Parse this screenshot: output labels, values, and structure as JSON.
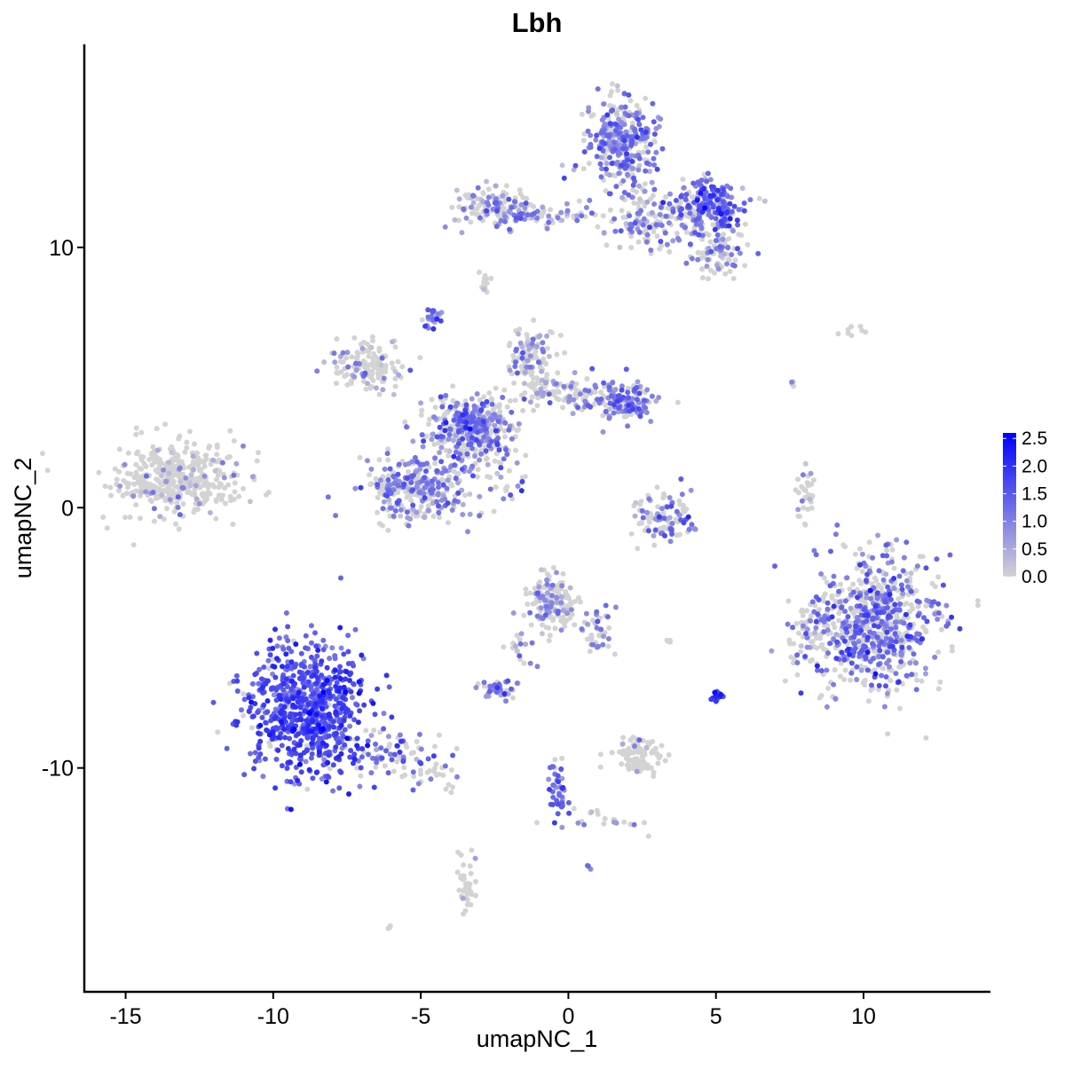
{
  "chart_data": {
    "type": "scatter",
    "title": "Lbh",
    "xlabel": "umapNC_1",
    "ylabel": "umapNC_2",
    "xlim": [
      -16.4,
      14.3
    ],
    "ylim": [
      -18.6,
      17.8
    ],
    "x_ticks": [
      -15,
      -10,
      -5,
      0,
      5,
      10
    ],
    "y_ticks": [
      -10,
      0,
      10
    ],
    "x_tick_labels": [
      "-15",
      "-10",
      "-5",
      "0",
      "5",
      "10"
    ],
    "y_tick_labels": [
      "-10",
      "0",
      "10"
    ],
    "grid": false,
    "color_scale": {
      "low": "#d3d3d3",
      "high": "#0000ff",
      "min": 0,
      "max": 2.6
    },
    "legend": {
      "placement": "right",
      "ticks": [
        2.5,
        2.0,
        1.5,
        1.0,
        0.5,
        0.0
      ],
      "labels": [
        "2.5",
        "2.0",
        "1.5",
        "1.0",
        "0.5",
        "0.0"
      ]
    },
    "clusters": [
      {
        "x": -13.2,
        "y": 1.1,
        "sx": 1.1,
        "sy": 0.7,
        "n": 420,
        "p": 0.12,
        "mean": 0.6
      },
      {
        "x": -8.9,
        "y": -7.8,
        "sx": 1.0,
        "sy": 1.3,
        "n": 720,
        "p": 0.95,
        "mean": 1.6
      },
      {
        "x": -6.0,
        "y": -9.4,
        "sx": 0.9,
        "sy": 0.5,
        "n": 80,
        "p": 0.6,
        "mean": 1.2
      },
      {
        "x": -4.3,
        "y": -10.3,
        "sx": 0.5,
        "sy": 0.3,
        "n": 25,
        "p": 0.2,
        "mean": 0.8
      },
      {
        "x": 10.3,
        "y": -4.4,
        "sx": 1.1,
        "sy": 1.3,
        "n": 720,
        "p": 0.5,
        "mean": 1.2
      },
      {
        "x": 8.2,
        "y": -4.8,
        "sx": 0.3,
        "sy": 0.7,
        "n": 40,
        "p": 0.3,
        "mean": 0.9
      },
      {
        "x": 1.8,
        "y": 14.0,
        "sx": 0.6,
        "sy": 0.9,
        "n": 320,
        "p": 0.7,
        "mean": 1.1
      },
      {
        "x": 4.7,
        "y": 11.6,
        "sx": 0.6,
        "sy": 0.5,
        "n": 220,
        "p": 0.7,
        "mean": 1.3
      },
      {
        "x": 5.1,
        "y": 9.8,
        "sx": 0.5,
        "sy": 0.4,
        "n": 90,
        "p": 0.45,
        "mean": 1.0
      },
      {
        "x": 2.8,
        "y": 11.0,
        "sx": 0.8,
        "sy": 0.6,
        "n": 120,
        "p": 0.4,
        "mean": 1.0
      },
      {
        "x": -2.5,
        "y": 11.6,
        "sx": 0.6,
        "sy": 0.4,
        "n": 130,
        "p": 0.45,
        "mean": 0.9
      },
      {
        "x": -0.6,
        "y": 11.2,
        "sx": 0.8,
        "sy": 0.15,
        "n": 50,
        "p": 0.4,
        "mean": 0.9
      },
      {
        "x": -3.3,
        "y": 3.1,
        "sx": 0.7,
        "sy": 0.6,
        "n": 420,
        "p": 0.45,
        "mean": 1.1
      },
      {
        "x": -6.8,
        "y": 5.4,
        "sx": 0.6,
        "sy": 0.5,
        "n": 130,
        "p": 0.2,
        "mean": 0.8
      },
      {
        "x": -5.1,
        "y": 0.8,
        "sx": 1.0,
        "sy": 0.6,
        "n": 320,
        "p": 0.55,
        "mean": 1.0
      },
      {
        "x": -1.2,
        "y": 5.7,
        "sx": 0.4,
        "sy": 0.6,
        "n": 110,
        "p": 0.35,
        "mean": 0.9
      },
      {
        "x": 1.8,
        "y": 4.1,
        "sx": 0.6,
        "sy": 0.4,
        "n": 160,
        "p": 0.6,
        "mean": 1.1
      },
      {
        "x": -0.3,
        "y": 4.4,
        "sx": 0.8,
        "sy": 0.3,
        "n": 90,
        "p": 0.35,
        "mean": 0.9
      },
      {
        "x": -4.6,
        "y": 7.3,
        "sx": 0.15,
        "sy": 0.2,
        "n": 25,
        "p": 0.9,
        "mean": 1.2
      },
      {
        "x": -2.0,
        "y": 1.3,
        "sx": 0.4,
        "sy": 0.4,
        "n": 25,
        "p": 0.6,
        "mean": 1.0
      },
      {
        "x": 3.2,
        "y": -0.3,
        "sx": 0.5,
        "sy": 0.5,
        "n": 110,
        "p": 0.5,
        "mean": 1.1
      },
      {
        "x": -0.6,
        "y": -3.6,
        "sx": 0.4,
        "sy": 0.5,
        "n": 160,
        "p": 0.25,
        "mean": 0.8
      },
      {
        "x": 1.0,
        "y": -4.8,
        "sx": 0.3,
        "sy": 0.5,
        "n": 40,
        "p": 0.4,
        "mean": 0.9
      },
      {
        "x": -1.6,
        "y": -5.6,
        "sx": 0.3,
        "sy": 0.5,
        "n": 20,
        "p": 0.4,
        "mean": 0.9
      },
      {
        "x": -2.4,
        "y": -6.9,
        "sx": 0.3,
        "sy": 0.2,
        "n": 45,
        "p": 0.6,
        "mean": 1.0
      },
      {
        "x": 2.4,
        "y": -9.5,
        "sx": 0.4,
        "sy": 0.3,
        "n": 90,
        "p": 0.05,
        "mean": 0.6
      },
      {
        "x": -0.4,
        "y": -10.8,
        "sx": 0.2,
        "sy": 0.6,
        "n": 45,
        "p": 0.8,
        "mean": 1.3
      },
      {
        "x": 1.2,
        "y": -12.0,
        "sx": 0.8,
        "sy": 0.2,
        "n": 20,
        "p": 0.3,
        "mean": 0.8
      },
      {
        "x": -3.45,
        "y": -14.4,
        "sx": 0.15,
        "sy": 0.5,
        "n": 40,
        "p": 0.1,
        "mean": 0.6
      },
      {
        "x": 5.0,
        "y": -7.3,
        "sx": 0.1,
        "sy": 0.15,
        "n": 20,
        "p": 0.9,
        "mean": 1.6
      },
      {
        "x": 8.1,
        "y": 0.5,
        "sx": 0.15,
        "sy": 0.5,
        "n": 30,
        "p": 0.3,
        "mean": 0.8
      },
      {
        "x": -2.85,
        "y": 8.8,
        "sx": 0.1,
        "sy": 0.25,
        "n": 15,
        "p": 0.2,
        "mean": 0.6
      },
      {
        "x": 9.6,
        "y": 6.8,
        "sx": 0.4,
        "sy": 0.1,
        "n": 8,
        "p": 0.1,
        "mean": 0.6
      },
      {
        "x": 7.6,
        "y": 4.8,
        "sx": 0.05,
        "sy": 0.1,
        "n": 4,
        "p": 0.5,
        "mean": 1.0
      },
      {
        "x": 3.4,
        "y": -5.1,
        "sx": 0.1,
        "sy": 0.05,
        "n": 5,
        "p": 0.0,
        "mean": 0.0
      },
      {
        "x": 0.7,
        "y": -13.8,
        "sx": 0.05,
        "sy": 0.05,
        "n": 3,
        "p": 1.0,
        "mean": 1.0
      },
      {
        "x": -6.05,
        "y": -16.1,
        "sx": 0.05,
        "sy": 0.05,
        "n": 3,
        "p": 0.0,
        "mean": 0.0
      }
    ]
  }
}
